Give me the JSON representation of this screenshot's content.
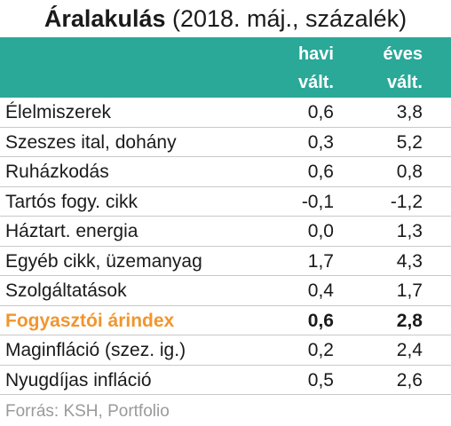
{
  "title": {
    "bold": "Áralakulás",
    "rest": " (2018. máj., százalék)"
  },
  "header": {
    "col1_line1": "havi",
    "col1_line2": "vált.",
    "col2_line1": "éves",
    "col2_line2": "vált."
  },
  "rows": [
    {
      "label": "Élelmiszerek",
      "monthly": "0,6",
      "yearly": "3,8"
    },
    {
      "label": "Szeszes ital, dohány",
      "monthly": "0,3",
      "yearly": "5,2"
    },
    {
      "label": "Ruházkodás",
      "monthly": "0,6",
      "yearly": "0,8"
    },
    {
      "label": "Tartós fogy. cikk",
      "monthly": "-0,1",
      "yearly": "-1,2"
    },
    {
      "label": "Háztart. energia",
      "monthly": "0,0",
      "yearly": "1,3"
    },
    {
      "label": "Egyéb cikk, üzemanyag",
      "monthly": "1,7",
      "yearly": "4,3"
    },
    {
      "label": "Szolgáltatások",
      "monthly": "0,4",
      "yearly": "1,7"
    },
    {
      "label": "Fogyasztói árindex",
      "monthly": "0,6",
      "yearly": "2,8"
    },
    {
      "label": "Maginfláció (szez. ig.)",
      "monthly": "0,2",
      "yearly": "2,4"
    },
    {
      "label": "Nyugdíjas infláció",
      "monthly": "0,5",
      "yearly": "2,6"
    }
  ],
  "source": "Forrás: KSH, Portfolio",
  "colors": {
    "header_bg": "#2aa898",
    "highlight_label": "#f0962e",
    "source_text": "#9a9a9a"
  }
}
